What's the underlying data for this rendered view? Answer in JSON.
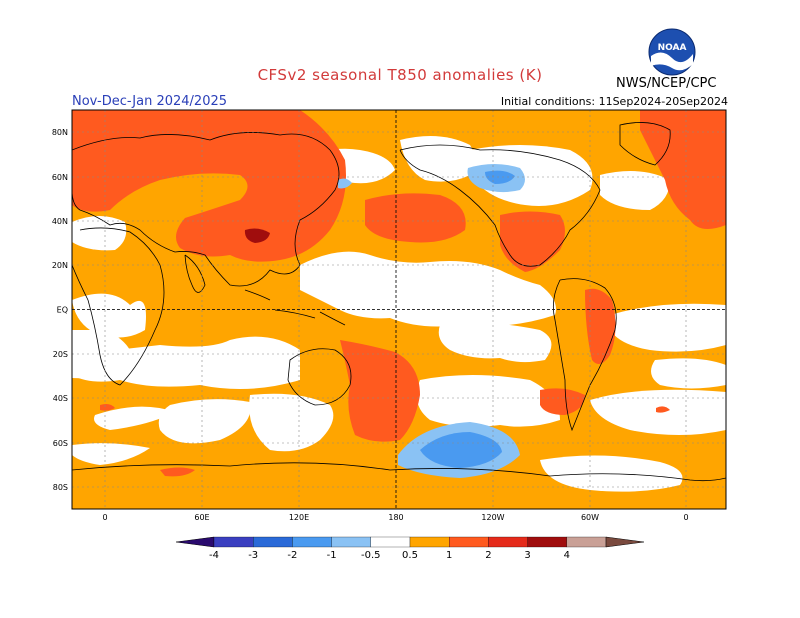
{
  "title": "CFSv2 seasonal T850 anomalies (K)",
  "period": "Nov-Dec-Jan 2024/2025",
  "initial_conditions": "Initial conditions: 11Sep2024-20Sep2024",
  "agency": "NWS/NCEP/CPC",
  "logo": {
    "icon": "noaa-logo-icon",
    "text": "NOAA"
  },
  "map": {
    "lat_ticks": [
      "80N",
      "60N",
      "40N",
      "20N",
      "EQ",
      "20S",
      "40S",
      "60S",
      "80S"
    ],
    "lon_ticks": [
      "0",
      "60E",
      "120E",
      "180",
      "120W",
      "60W",
      "0"
    ]
  },
  "colorbar": {
    "labels": [
      "-4",
      "-3",
      "-2",
      "-1",
      "-0.5",
      "0.5",
      "1",
      "2",
      "3",
      "4"
    ],
    "colors": {
      "below_-4": "#2a0a6e",
      "-4_-3": "#3a3fc0",
      "-3_-2": "#2a6ad8",
      "-2_-1": "#4a9af0",
      "-1_-0.5": "#8ac2f4",
      "-0.5_0.5": "#ffffff",
      "0.5_1": "#ffa500",
      "1_2": "#ff5a1f",
      "2_3": "#e52a1a",
      "3_4": "#a00d0d",
      "4_5": "#c9a096",
      "above_5": "#7a4a3e"
    }
  }
}
